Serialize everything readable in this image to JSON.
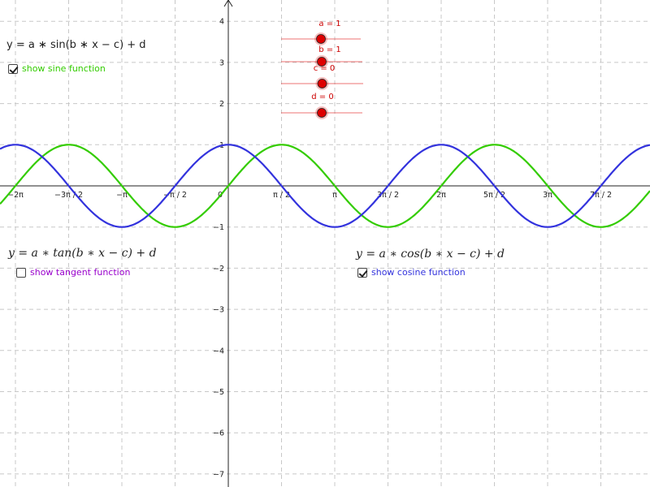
{
  "x_ticks": [
    "−2π",
    "−3π / 2",
    "−π",
    "−π / 2",
    "0",
    "π / 2",
    "π",
    "3π / 2",
    "2π",
    "5π / 2",
    "3π",
    "7π / 2"
  ],
  "y_ticks": [
    "4",
    "3",
    "2",
    "1",
    "−1",
    "−2",
    "−3",
    "−4",
    "−5",
    "−6",
    "−7"
  ],
  "sine": {
    "formula": "y = a ∗ sin(b ∗ x − c) + d",
    "checkbox_label": "show sine function",
    "checked": true,
    "color": "#33cc00"
  },
  "tangent": {
    "formula": "y = a ∗ tan(b ∗ x − c) + d",
    "checkbox_label": "show tangent function",
    "checked": false,
    "color": "#9900cc"
  },
  "cosine": {
    "formula": "y = a ∗ cos(b ∗ x − c) + d",
    "checkbox_label": "show cosine function",
    "checked": true,
    "color": "#3333dd"
  },
  "sliders": {
    "a": {
      "label": "a = 1",
      "value": 1,
      "min": -1,
      "max": 3
    },
    "b": {
      "label": "b = 1",
      "value": 1,
      "min": -1,
      "max": 3
    },
    "c": {
      "label": "c = 0",
      "value": 0,
      "min": -1,
      "max": 1
    },
    "d": {
      "label": "d = 0",
      "value": 0,
      "min": -1,
      "max": 1
    }
  },
  "slider_color": "#dd0000"
}
